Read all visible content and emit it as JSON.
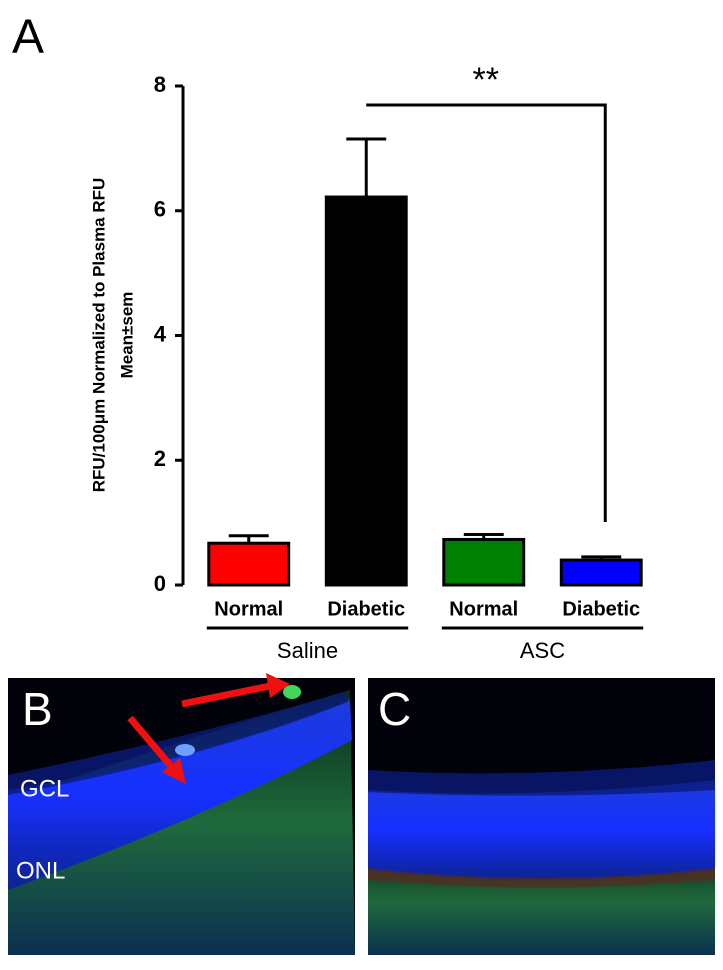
{
  "chart_data": {
    "type": "bar",
    "panel_label": "A",
    "ylabel": [
      "RFU/100μm Normalized to Plasma RFU",
      "Mean±sem"
    ],
    "categories": [
      "Normal",
      "Diabetic",
      "Normal",
      "Diabetic"
    ],
    "groups": [
      "Saline",
      "ASC"
    ],
    "values": [
      0.67,
      6.22,
      0.73,
      0.4
    ],
    "errors": [
      0.12,
      0.93,
      0.08,
      0.05
    ],
    "colors": [
      "#ff0000",
      "#000000",
      "#008000",
      "#0000ff"
    ],
    "ylim": [
      0,
      8
    ],
    "yticks": [
      0,
      2,
      4,
      6,
      8
    ],
    "annotation": "**"
  },
  "images": [
    {
      "label": "B",
      "layers": [
        "GCL",
        "ONL"
      ]
    },
    {
      "label": "C"
    }
  ]
}
